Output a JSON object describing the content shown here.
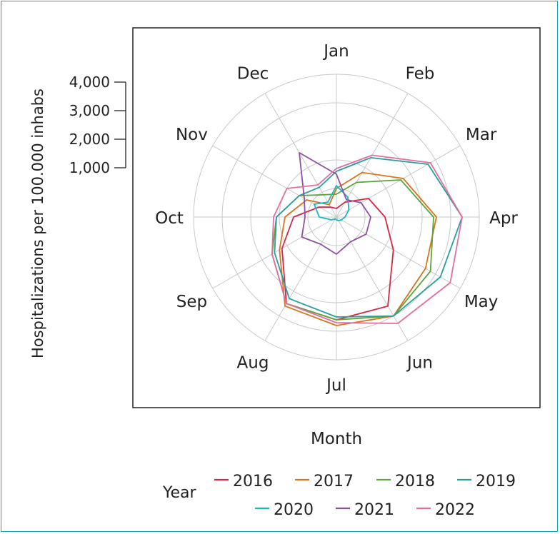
{
  "chart_data": {
    "type": "polar-line",
    "title": "",
    "xlabel": "Month",
    "ylabel": "Hospitalizations per 100.000 inhabs",
    "categories": [
      "Jan",
      "Feb",
      "Mar",
      "Apr",
      "May",
      "Jun",
      "Jul",
      "Aug",
      "Sep",
      "Oct",
      "Nov",
      "Dec"
    ],
    "r_ticks": [
      1000,
      2000,
      3000,
      4000
    ],
    "r_tick_labels": [
      "1,000",
      "2,000",
      "3,000",
      "4,000"
    ],
    "r_max": 5000,
    "grid": true,
    "legend_title": "Year",
    "legend_position": "bottom",
    "series": [
      {
        "name": "2016",
        "color": "#d62745",
        "values": [
          300,
          600,
          1300,
          1700,
          2300,
          3600,
          3600,
          3500,
          2200,
          1500,
          700,
          400
        ]
      },
      {
        "name": "2017",
        "color": "#d9731c",
        "values": [
          1000,
          1800,
          2700,
          3500,
          3600,
          4000,
          3800,
          3600,
          2300,
          1800,
          1200,
          500
        ]
      },
      {
        "name": "2018",
        "color": "#5aa63c",
        "values": [
          800,
          1400,
          2600,
          3400,
          3800,
          4000,
          3600,
          3500,
          2600,
          2100,
          1500,
          900
        ]
      },
      {
        "name": "2019",
        "color": "#2a9d9d",
        "values": [
          1600,
          2400,
          3700,
          4400,
          4200,
          4000,
          3500,
          3300,
          2500,
          2100,
          1500,
          1200
        ]
      },
      {
        "name": "2020",
        "color": "#1fb5c0",
        "values": [
          1100,
          800,
          500,
          300,
          200,
          150,
          100,
          80,
          200,
          600,
          900,
          600
        ]
      },
      {
        "name": "2021",
        "color": "#9050a0",
        "values": [
          1500,
          700,
          1000,
          1200,
          1200,
          1000,
          1300,
          1100,
          1400,
          1100,
          1300,
          2600
        ]
      },
      {
        "name": "2022",
        "color": "#e070a0",
        "values": [
          1700,
          2500,
          3800,
          4400,
          4600,
          4300,
          3700,
          3500,
          2600,
          2200,
          2000,
          1300
        ]
      }
    ]
  }
}
